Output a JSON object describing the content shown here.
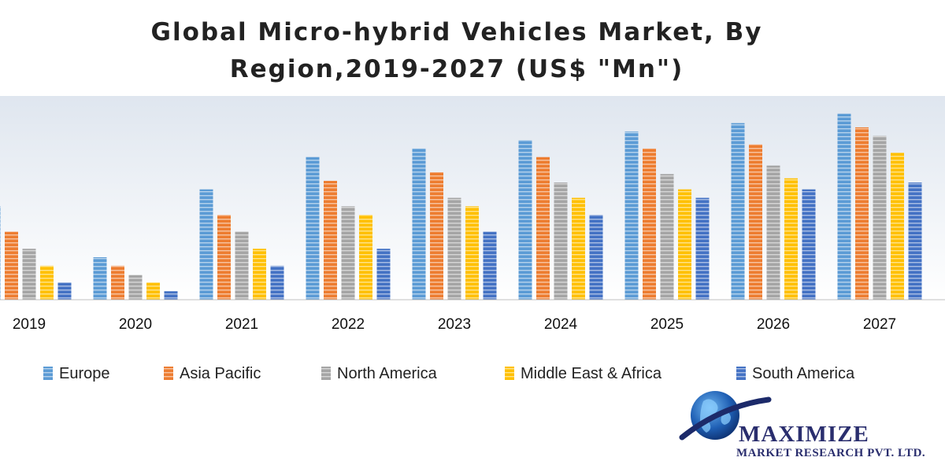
{
  "chart_data": {
    "type": "bar",
    "title_line1": "Global Micro-hybrid Vehicles Market, By",
    "title_line2": "Region,2019-2027 (US$ \"Mn\")",
    "categories": [
      "2019",
      "2020",
      "2021",
      "2022",
      "2023",
      "2024",
      "2025",
      "2026",
      "2027"
    ],
    "series": [
      {
        "name": "Europe",
        "color": "#5b9bd5",
        "values": [
          110,
          50,
          130,
          168,
          178,
          188,
          198,
          208,
          219
        ]
      },
      {
        "name": "Asia Pacific",
        "color": "#ed7d31",
        "values": [
          80,
          40,
          100,
          140,
          150,
          168,
          178,
          183,
          203
        ]
      },
      {
        "name": "North America",
        "color": "#a5a5a5",
        "values": [
          60,
          29,
          80,
          110,
          120,
          138,
          148,
          158,
          193
        ]
      },
      {
        "name": "Middle East & Africa",
        "color": "#ffc000",
        "values": [
          40,
          20,
          60,
          100,
          110,
          120,
          130,
          143,
          173
        ]
      },
      {
        "name": "South America",
        "color": "#4472c4",
        "values": [
          20,
          10,
          40,
          60,
          80,
          100,
          120,
          130,
          138
        ]
      }
    ],
    "xlabel": "",
    "ylabel": "",
    "ylim": [
      0,
      240
    ],
    "legend_position": "bottom"
  },
  "brand": {
    "name": "MAXIMIZE",
    "subtitle": "MARKET RESEARCH PVT. LTD."
  }
}
